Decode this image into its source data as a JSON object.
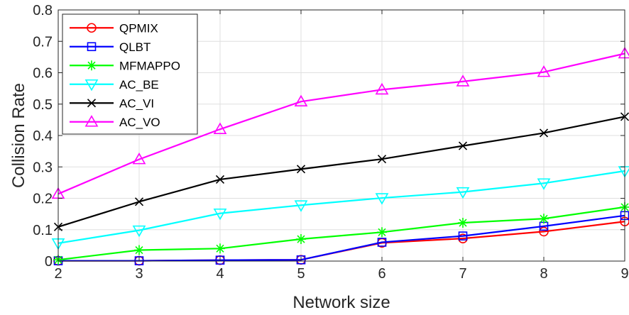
{
  "chart_data": {
    "type": "line",
    "xlabel": "Network size",
    "ylabel": "Collision Rate",
    "x": [
      2,
      3,
      4,
      5,
      6,
      7,
      8,
      9
    ],
    "xlim": [
      2,
      9
    ],
    "ylim": [
      0,
      0.8
    ],
    "xticks": [
      "2",
      "3",
      "4",
      "5",
      "6",
      "7",
      "8",
      "9"
    ],
    "yticks": [
      "0",
      "0.1",
      "0.2",
      "0.3",
      "0.4",
      "0.5",
      "0.6",
      "0.7",
      "0.8"
    ],
    "grid": true,
    "legend_position": "top-left",
    "series": [
      {
        "name": "QPMIX",
        "color": "#ff0000",
        "marker": "circle",
        "values": [
          0.001,
          0.001,
          0.003,
          0.004,
          0.058,
          0.072,
          0.094,
          0.126
        ]
      },
      {
        "name": "QLBT",
        "color": "#0000ff",
        "marker": "square",
        "values": [
          0.001,
          0.001,
          0.003,
          0.004,
          0.06,
          0.08,
          0.111,
          0.145
        ]
      },
      {
        "name": "MFMAPPO",
        "color": "#00ff00",
        "marker": "star",
        "values": [
          0.004,
          0.035,
          0.04,
          0.07,
          0.092,
          0.122,
          0.135,
          0.172
        ]
      },
      {
        "name": "AC_BE",
        "color": "#00ffff",
        "marker": "triangle-down",
        "values": [
          0.057,
          0.098,
          0.152,
          0.178,
          0.201,
          0.22,
          0.248,
          0.287
        ]
      },
      {
        "name": "AC_VI",
        "color": "#000000",
        "marker": "x",
        "values": [
          0.109,
          0.189,
          0.26,
          0.293,
          0.325,
          0.367,
          0.408,
          0.46
        ]
      },
      {
        "name": "AC_VO",
        "color": "#ff00ff",
        "marker": "triangle-up",
        "values": [
          0.214,
          0.324,
          0.42,
          0.508,
          0.546,
          0.572,
          0.602,
          0.661
        ]
      }
    ]
  }
}
